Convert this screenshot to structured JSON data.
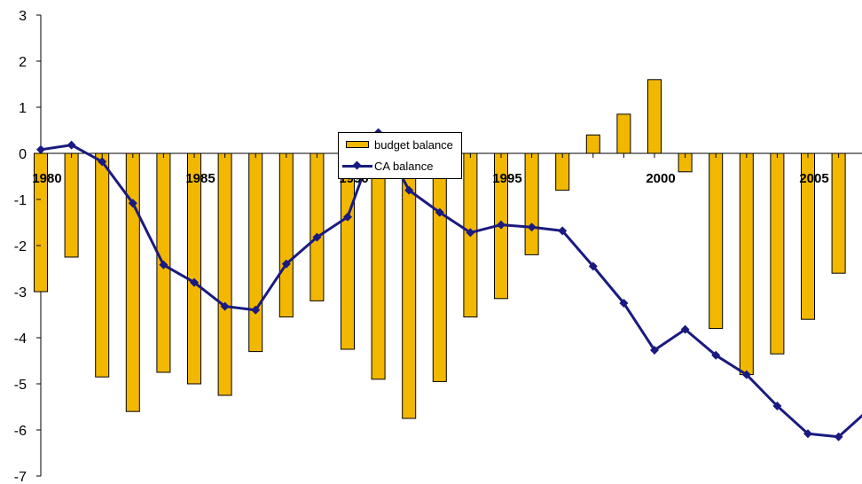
{
  "chart_data": {
    "type": "bar+line",
    "title": "",
    "xlabel": "",
    "ylabel": "",
    "ylim": [
      -7,
      3
    ],
    "y_ticks": [
      3,
      2,
      1,
      0,
      -1,
      -2,
      -3,
      -4,
      -5,
      -6,
      -7
    ],
    "x_tick_labels": [
      {
        "year": 1980,
        "label": "1980"
      },
      {
        "year": 1985,
        "label": "1985"
      },
      {
        "year": 1990,
        "label": "1990"
      },
      {
        "year": 1995,
        "label": "1995"
      },
      {
        "year": 2000,
        "label": "2000"
      },
      {
        "year": 2005,
        "label": "2005"
      }
    ],
    "years": [
      1980,
      1981,
      1982,
      1983,
      1984,
      1985,
      1986,
      1987,
      1988,
      1989,
      1990,
      1991,
      1992,
      1993,
      1994,
      1995,
      1996,
      1997,
      1998,
      1999,
      2000,
      2001,
      2002,
      2003,
      2004,
      2005,
      2006,
      2007
    ],
    "grid": false,
    "legend_position": "center",
    "series": [
      {
        "name": "budget balance",
        "kind": "bar",
        "color": "#F2B800",
        "values": [
          -3.0,
          -2.25,
          -4.85,
          -5.6,
          -4.75,
          -5.0,
          -5.25,
          -4.3,
          -3.55,
          -3.2,
          -4.25,
          -4.9,
          -5.75,
          -4.95,
          -3.55,
          -3.15,
          -2.2,
          -0.8,
          0.4,
          0.85,
          1.6,
          -0.4,
          -3.8,
          -4.8,
          -4.35,
          -3.6,
          -2.6,
          null
        ]
      },
      {
        "name": "CA balance",
        "kind": "line",
        "color": "#1A1A80",
        "values": [
          0.08,
          0.18,
          -0.18,
          -1.08,
          -2.42,
          -2.8,
          -3.32,
          -3.4,
          -2.4,
          -1.82,
          -1.38,
          0.45,
          -0.8,
          -1.28,
          -1.72,
          -1.55,
          -1.6,
          -1.68,
          -2.45,
          -3.25,
          -4.27,
          -3.82,
          -4.38,
          -4.8,
          -5.48,
          -6.08,
          -6.15,
          -5.55
        ]
      }
    ]
  }
}
